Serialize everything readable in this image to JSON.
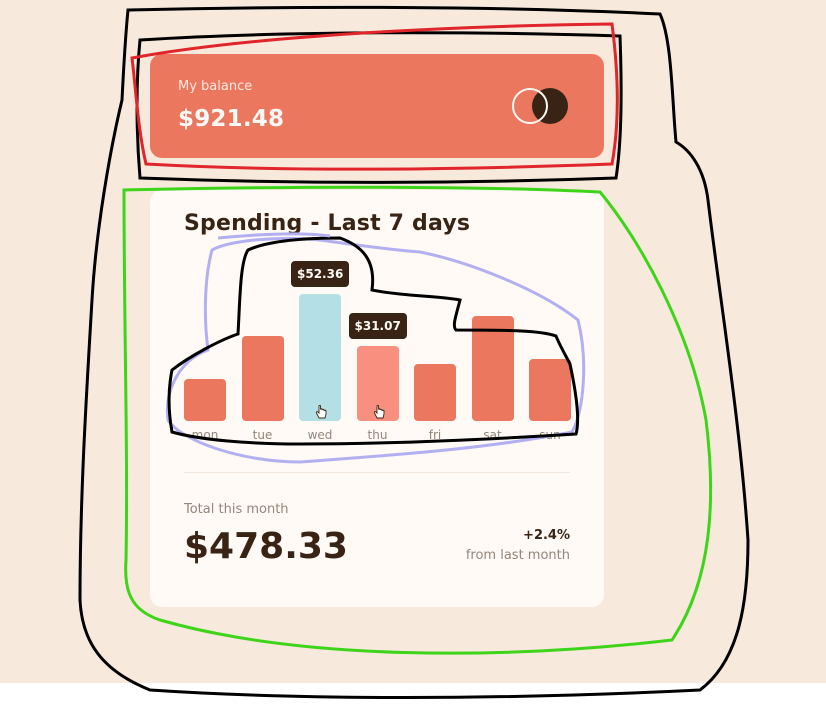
{
  "balance": {
    "label": "My balance",
    "amount": "$921.48",
    "logo_icon": "overlapping-circles-logo"
  },
  "spending": {
    "title": "Spending - Last 7 days",
    "tooltips": {
      "wed": "$52.36",
      "thu": "$31.07"
    },
    "total_label": "Total this month",
    "total_amount": "$478.33",
    "change_percent": "+2.4%",
    "change_label": "from last month"
  },
  "chart_data": {
    "type": "bar",
    "categories": [
      "mon",
      "tue",
      "wed",
      "thu",
      "fri",
      "sat",
      "sun"
    ],
    "values": [
      17.45,
      34.91,
      52.36,
      31.07,
      23.39,
      43.28,
      25.48
    ],
    "ylim": [
      0,
      52.36
    ],
    "highlighted": [
      "wed",
      "thu"
    ],
    "colors": {
      "default": "#ec775f",
      "active": "#b4e0e5",
      "hover": "#f9907f"
    }
  },
  "colors": {
    "background": "#f8e9dd",
    "card": "#fffaf5",
    "accent": "#ec775f",
    "text_dark": "#382314",
    "text_muted": "#93867b"
  }
}
